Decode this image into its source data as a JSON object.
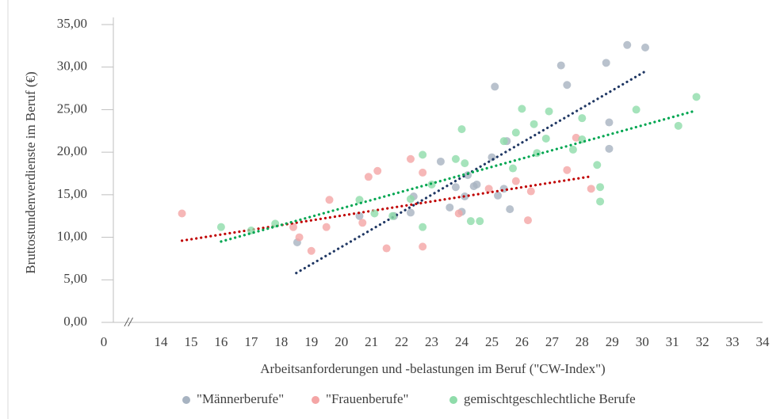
{
  "chart_data": {
    "type": "scatter",
    "ylabel": "Bruttostundenverdienste im Beruf (€)",
    "xlabel": "Arbeitsanforderungen und -belastungen im Beruf (\"CW-Index\")",
    "xlim": [
      0,
      34
    ],
    "x_break": {
      "range": [
        0,
        14
      ],
      "label": "//"
    },
    "xticks": [
      0,
      14,
      15,
      16,
      17,
      18,
      19,
      20,
      21,
      22,
      23,
      24,
      25,
      26,
      27,
      28,
      29,
      30,
      31,
      32,
      33,
      34
    ],
    "ylim": [
      0,
      35
    ],
    "yticks": [
      {
        "value": 0,
        "label": "0,00"
      },
      {
        "value": 5,
        "label": "5,00"
      },
      {
        "value": 10,
        "label": "10,00"
      },
      {
        "value": 15,
        "label": "15,00"
      },
      {
        "value": 20,
        "label": "20,00"
      },
      {
        "value": 25,
        "label": "25,00"
      },
      {
        "value": 30,
        "label": "30,00"
      },
      {
        "value": 35,
        "label": "35,00"
      }
    ],
    "legend": "bottom",
    "series": [
      {
        "name": "\"Männerberufe\"",
        "color": "#a7b3c1",
        "label_color": "#1f3864",
        "trend_color": "#203864",
        "x": [
          18.53,
          20.6,
          21.75,
          22.3,
          22.4,
          23.3,
          23.6,
          23.8,
          24.0,
          24.1,
          24.2,
          24.4,
          24.5,
          25.0,
          25.1,
          25.2,
          25.4,
          25.5,
          25.6,
          27.3,
          27.5,
          28.8,
          28.9,
          28.9,
          29.5,
          30.1
        ],
        "values": [
          9.4,
          12.5,
          12.5,
          12.9,
          14.8,
          18.9,
          13.5,
          15.9,
          13.0,
          14.8,
          17.3,
          16.0,
          16.2,
          19.4,
          27.7,
          14.9,
          15.7,
          21.3,
          13.3,
          30.2,
          27.9,
          30.5,
          23.5,
          20.4,
          32.6,
          32.3
        ],
        "trendline": {
          "x": [
            18.5,
            30.1
          ],
          "y": [
            5.8,
            29.5
          ]
        }
      },
      {
        "name": "\"Frauenberufe\"",
        "color": "#f4a5a5",
        "label_color": "#c00000",
        "trend_color": "#c00000",
        "x": [
          14.7,
          18.4,
          18.6,
          19.0,
          19.5,
          19.6,
          20.7,
          20.9,
          21.2,
          21.5,
          22.3,
          22.7,
          22.7,
          23.9,
          24.9,
          25.8,
          26.2,
          26.3,
          27.5,
          27.8,
          28.3
        ],
        "values": [
          12.8,
          11.2,
          10.0,
          8.4,
          11.2,
          14.4,
          11.7,
          17.1,
          17.8,
          8.7,
          19.2,
          17.6,
          8.9,
          12.8,
          15.7,
          16.6,
          12.0,
          15.4,
          17.9,
          21.7,
          15.7
        ],
        "trendline": {
          "x": [
            14.7,
            28.2
          ],
          "y": [
            9.6,
            17.1
          ]
        }
      },
      {
        "name": "gemischtgeschlechtliche Berufe",
        "color": "#8fdcaa",
        "label_color": "#00a04f",
        "trend_color": "#00a651",
        "x": [
          16.0,
          17.0,
          17.8,
          20.6,
          21.1,
          21.7,
          22.3,
          22.7,
          22.7,
          23.0,
          23.8,
          24.0,
          24.1,
          24.3,
          24.6,
          25.4,
          25.7,
          25.8,
          26.0,
          26.4,
          26.5,
          26.8,
          26.9,
          27.7,
          28.0,
          28.0,
          28.5,
          28.6,
          28.6,
          29.8,
          31.2,
          31.8
        ],
        "values": [
          11.2,
          10.8,
          11.6,
          14.4,
          12.8,
          12.5,
          14.5,
          19.7,
          11.2,
          16.2,
          19.2,
          22.7,
          18.7,
          11.9,
          11.9,
          21.3,
          18.1,
          22.3,
          25.1,
          23.3,
          19.9,
          21.6,
          24.8,
          20.3,
          24.0,
          21.5,
          18.5,
          15.9,
          14.2,
          25.0,
          23.1,
          26.5
        ],
        "trendline": {
          "x": [
            16.0,
            31.8
          ],
          "y": [
            9.5,
            24.9
          ]
        }
      }
    ]
  }
}
